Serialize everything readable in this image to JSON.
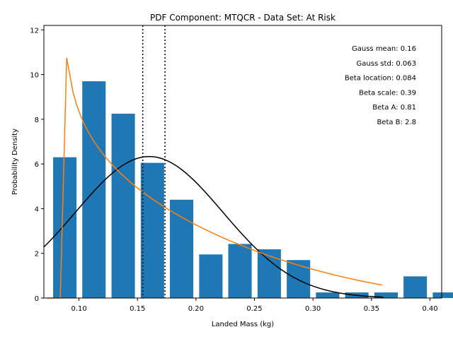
{
  "chart_data": {
    "type": "bar",
    "title": "PDF Component: MTQCR - Data Set: At Risk",
    "xlabel": "Landed Mass (kg)",
    "ylabel": "Probability Density",
    "xlim": [
      0.07,
      0.41
    ],
    "ylim": [
      0,
      12.2
    ],
    "grid": false,
    "x_ticks": [
      {
        "value": 0.1,
        "label": "0.10"
      },
      {
        "value": 0.15,
        "label": "0.15"
      },
      {
        "value": 0.2,
        "label": "0.20"
      },
      {
        "value": 0.25,
        "label": "0.25"
      },
      {
        "value": 0.3,
        "label": "0.30"
      },
      {
        "value": 0.35,
        "label": "0.35"
      },
      {
        "value": 0.4,
        "label": "0.40"
      }
    ],
    "y_ticks": [
      {
        "value": 0,
        "label": "0"
      },
      {
        "value": 2,
        "label": "2"
      },
      {
        "value": 4,
        "label": "4"
      },
      {
        "value": 6,
        "label": "6"
      },
      {
        "value": 8,
        "label": "8"
      },
      {
        "value": 10,
        "label": "10"
      },
      {
        "value": 12,
        "label": "12"
      }
    ],
    "histogram": {
      "color": "#1f77b4",
      "bin_width": 0.025,
      "bar_width": 0.02,
      "bins": [
        {
          "x": 0.0944,
          "value": 6.3
        },
        {
          "x": 0.1193,
          "value": 9.7
        },
        {
          "x": 0.1443,
          "value": 8.25
        },
        {
          "x": 0.1693,
          "value": 6.05
        },
        {
          "x": 0.1942,
          "value": 4.4
        },
        {
          "x": 0.2192,
          "value": 1.95
        },
        {
          "x": 0.2441,
          "value": 2.42
        },
        {
          "x": 0.2691,
          "value": 2.18
        },
        {
          "x": 0.2941,
          "value": 1.7
        },
        {
          "x": 0.319,
          "value": 0.25
        },
        {
          "x": 0.344,
          "value": 0.25
        },
        {
          "x": 0.369,
          "value": 0.25
        },
        {
          "x": 0.3939,
          "value": 0.97
        },
        {
          "x": 0.4189,
          "value": 0.25
        }
      ]
    },
    "series": [
      {
        "kind": "gaussian",
        "color": "#000000",
        "mean": 0.16,
        "std": 0.063
      },
      {
        "kind": "beta",
        "color": "#ff7f0e",
        "loc": 0.084,
        "scale": 0.39,
        "a": 0.81,
        "b": 2.8
      }
    ],
    "vlines": [
      {
        "x": 0.1545,
        "style": "dotted",
        "color": "#000000"
      },
      {
        "x": 0.1735,
        "style": "dotted",
        "color": "#000000"
      }
    ],
    "legend_placement": "top-right",
    "annotations": [
      "Gauss mean: 0.16",
      "Gauss std: 0.063",
      "Beta location: 0.084",
      "Beta scale: 0.39",
      "Beta A: 0.81",
      "Beta B: 2.8"
    ]
  }
}
